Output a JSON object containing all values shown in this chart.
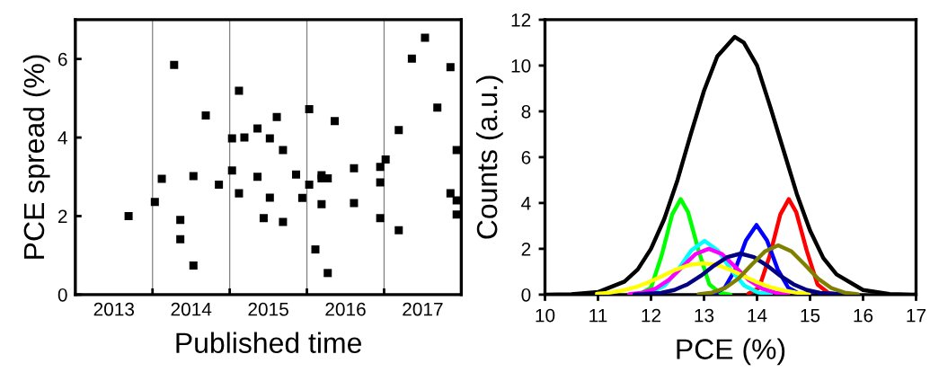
{
  "chart_data": [
    {
      "type": "scatter",
      "xlabel": "Published time",
      "ylabel": "PCE spread (%)",
      "marker": "square",
      "xlim": [
        2013,
        2018
      ],
      "ylim": [
        0,
        7
      ],
      "xticks": [
        {
          "value": 2013.5,
          "label": "2013"
        },
        {
          "value": 2014,
          "label": null
        },
        {
          "value": 2014.5,
          "label": "2014"
        },
        {
          "value": 2015,
          "label": null
        },
        {
          "value": 2015.5,
          "label": "2015"
        },
        {
          "value": 2016,
          "label": null
        },
        {
          "value": 2016.5,
          "label": "2016"
        },
        {
          "value": 2017,
          "label": null
        },
        {
          "value": 2017.5,
          "label": "2017"
        }
      ],
      "yticks": [
        0,
        2,
        4,
        6
      ],
      "ref_lines": [
        {
          "axis": "x",
          "value": 2014,
          "color": "#808080"
        },
        {
          "axis": "x",
          "value": 2015,
          "color": "#808080"
        },
        {
          "axis": "x",
          "value": 2016,
          "color": "#808080"
        },
        {
          "axis": "x",
          "value": 2017,
          "color": "#808080"
        }
      ],
      "series": [
        {
          "color": "#000000",
          "x": [
            2013.69,
            2014.03,
            2014.12,
            2014.28,
            2014.36,
            2014.36,
            2014.53,
            2014.53,
            2014.69,
            2014.86,
            2015.03,
            2015.03,
            2015.12,
            2015.12,
            2015.19,
            2015.36,
            2015.36,
            2015.44,
            2015.52,
            2015.52,
            2015.61,
            2015.69,
            2015.69,
            2015.86,
            2015.94,
            2016.03,
            2016.03,
            2016.11,
            2016.19,
            2016.19,
            2016.27,
            2016.19,
            2016.27,
            2016.36,
            2016.61,
            2016.61,
            2016.95,
            2016.95,
            2016.95,
            2017.02,
            2017.19,
            2017.19,
            2017.36,
            2017.53,
            2017.69,
            2017.86,
            2017.86,
            2017.94,
            2017.94,
            2017.94
          ],
          "values": [
            2.0,
            2.36,
            2.95,
            5.85,
            1.9,
            1.41,
            3.02,
            0.74,
            4.56,
            2.8,
            3.98,
            3.16,
            5.19,
            2.58,
            4.0,
            4.23,
            3.0,
            1.95,
            3.98,
            2.47,
            4.52,
            3.68,
            1.85,
            3.06,
            2.46,
            4.72,
            2.8,
            1.15,
            3.04,
            2.96,
            2.96,
            2.3,
            0.55,
            4.42,
            3.22,
            2.33,
            3.25,
            2.86,
            1.95,
            3.44,
            4.19,
            1.64,
            6.01,
            6.54,
            4.76,
            5.79,
            2.58,
            3.68,
            2.4,
            2.04
          ]
        }
      ]
    },
    {
      "type": "line",
      "xlabel": "PCE (%)",
      "ylabel": "Counts (a.u.)",
      "xlim": [
        10,
        17
      ],
      "ylim": [
        0,
        12
      ],
      "xticks": [
        10,
        11,
        12,
        13,
        14,
        15,
        16,
        17
      ],
      "yticks": [
        0,
        2,
        4,
        6,
        8,
        10,
        12
      ],
      "series": [
        {
          "color": "#000000",
          "x": [
            10,
            10.5,
            11,
            11.5,
            11.75,
            12,
            12.25,
            12.5,
            12.75,
            13,
            13.25,
            13.58,
            13.75,
            14,
            14.25,
            14.5,
            14.75,
            15,
            15.25,
            15.5,
            16,
            16.5,
            17
          ],
          "values": [
            0,
            0.02,
            0.11,
            0.57,
            1.1,
            2.0,
            3.3,
            5.0,
            7.0,
            8.9,
            10.4,
            11.25,
            11.0,
            10.0,
            8.2,
            6.3,
            4.4,
            2.8,
            1.6,
            0.88,
            0.2,
            0.03,
            0
          ]
        },
        {
          "color": "#00ff00",
          "x": [
            11.8,
            12.0,
            12.2,
            12.4,
            12.56,
            12.7,
            12.9,
            13.1,
            13.3,
            13.5
          ],
          "values": [
            0.05,
            0.3,
            1.7,
            3.5,
            4.17,
            3.6,
            1.9,
            0.45,
            0.08,
            0
          ]
        },
        {
          "color": "#ff0000",
          "x": [
            13.84,
            14.04,
            14.24,
            14.44,
            14.6,
            14.74,
            14.94,
            15.14,
            15.34,
            15.54
          ],
          "values": [
            0.05,
            0.3,
            1.7,
            3.5,
            4.17,
            3.6,
            1.9,
            0.45,
            0.08,
            0
          ]
        },
        {
          "color": "#0000ff",
          "x": [
            13.19,
            13.39,
            13.59,
            13.79,
            13.99,
            14.19,
            14.39,
            14.59,
            14.79,
            15.0
          ],
          "values": [
            0.05,
            0.3,
            1.1,
            2.36,
            3.04,
            2.36,
            1.1,
            0.3,
            0.05,
            0
          ]
        },
        {
          "color": "#00ffff",
          "x": [
            12.01,
            12.26,
            12.51,
            12.76,
            13.01,
            13.26,
            13.51,
            13.76,
            14.01,
            14.26
          ],
          "values": [
            0.1,
            0.4,
            1.08,
            1.93,
            2.35,
            1.93,
            1.08,
            0.4,
            0.1,
            0.02
          ]
        },
        {
          "color": "#ff00ff",
          "x": [
            11.59,
            11.84,
            12.09,
            12.34,
            12.59,
            12.84,
            13.09,
            13.34,
            13.59,
            13.84,
            14.09,
            14.34,
            14.59
          ],
          "values": [
            0.02,
            0.09,
            0.27,
            0.65,
            1.21,
            1.77,
            2.0,
            1.77,
            1.21,
            0.65,
            0.27,
            0.09,
            0.02
          ]
        },
        {
          "color": "#ffff00",
          "x": [
            10.98,
            11.23,
            11.48,
            11.73,
            11.98,
            12.23,
            12.48,
            12.73,
            12.98,
            13.23,
            13.48,
            13.73,
            13.98,
            14.23,
            14.48,
            14.73,
            14.98
          ],
          "values": [
            0.04,
            0.09,
            0.19,
            0.34,
            0.56,
            0.83,
            1.1,
            1.3,
            1.37,
            1.3,
            1.1,
            0.83,
            0.56,
            0.34,
            0.19,
            0.09,
            0.04
          ]
        },
        {
          "color": "#000080",
          "x": [
            11.69,
            12.19,
            12.44,
            12.69,
            12.94,
            13.19,
            13.44,
            13.69,
            13.94,
            14.19,
            14.44,
            14.69,
            14.94,
            15.19,
            15.69
          ],
          "values": [
            0.01,
            0.08,
            0.2,
            0.45,
            0.82,
            1.27,
            1.64,
            1.79,
            1.64,
            1.27,
            0.82,
            0.45,
            0.2,
            0.08,
            0.01
          ]
        },
        {
          "color": "#808000",
          "x": [
            12.9,
            13.15,
            13.4,
            13.65,
            13.9,
            14.15,
            14.4,
            14.65,
            14.9,
            15.15,
            15.4,
            15.65,
            15.9
          ],
          "values": [
            0.02,
            0.09,
            0.29,
            0.7,
            1.31,
            1.89,
            2.15,
            1.89,
            1.31,
            0.7,
            0.29,
            0.09,
            0.02
          ]
        }
      ]
    }
  ]
}
